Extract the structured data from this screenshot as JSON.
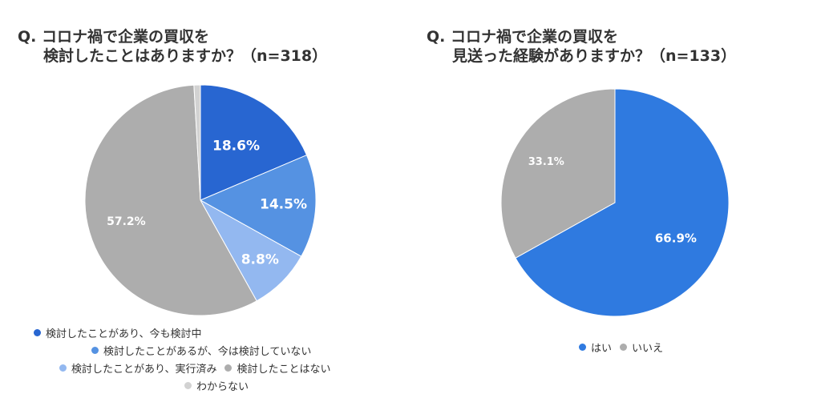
{
  "charts": [
    {
      "title_line1": "Q. コロナ禍で企業の買収を",
      "title_line2": "検討したことはありますか？（n=318）",
      "legend": [
        "検討したことがあり、今も検討中",
        "検討したことがあるが、今は検討していない",
        "検討したことがあり、実行済み",
        "検討したことはない",
        "わからない"
      ]
    },
    {
      "title_line1": "Q. コロナ禍で企業の買収を",
      "title_line2": "見送った経験がありますか？（n=133）",
      "legend": [
        "はい",
        "いいえ"
      ]
    }
  ],
  "chart_data": [
    {
      "type": "pie",
      "title": "Q. コロナ禍で企業の買収を 検討したことはありますか？（n=318）",
      "slices": [
        {
          "label": "検討したことがあり、今も検討中",
          "value": 18.6,
          "value_label": "18.6%",
          "color": "#2866d1"
        },
        {
          "label": "検討したことがあるが、今は検討していない",
          "value": 14.5,
          "value_label": "14.5%",
          "color": "#5592e2"
        },
        {
          "label": "検討したことがあり、実行済み",
          "value": 8.8,
          "value_label": "8.8%",
          "color": "#93b8f0"
        },
        {
          "label": "検討したことはない",
          "value": 57.2,
          "value_label": "57.2%",
          "color": "#adadad"
        },
        {
          "label": "わからない",
          "value": 0.9,
          "value_label": "",
          "color": "#d2d2d2"
        }
      ],
      "legend_position": "bottom"
    },
    {
      "type": "pie",
      "title": "Q. コロナ禍で企業の買収を 見送った経験がありますか？（n=133）",
      "slices": [
        {
          "label": "はい",
          "value": 66.9,
          "value_label": "66.9%",
          "color": "#2f7ae0"
        },
        {
          "label": "いいえ",
          "value": 33.1,
          "value_label": "33.1%",
          "color": "#adadad"
        }
      ],
      "legend_position": "bottom"
    }
  ]
}
